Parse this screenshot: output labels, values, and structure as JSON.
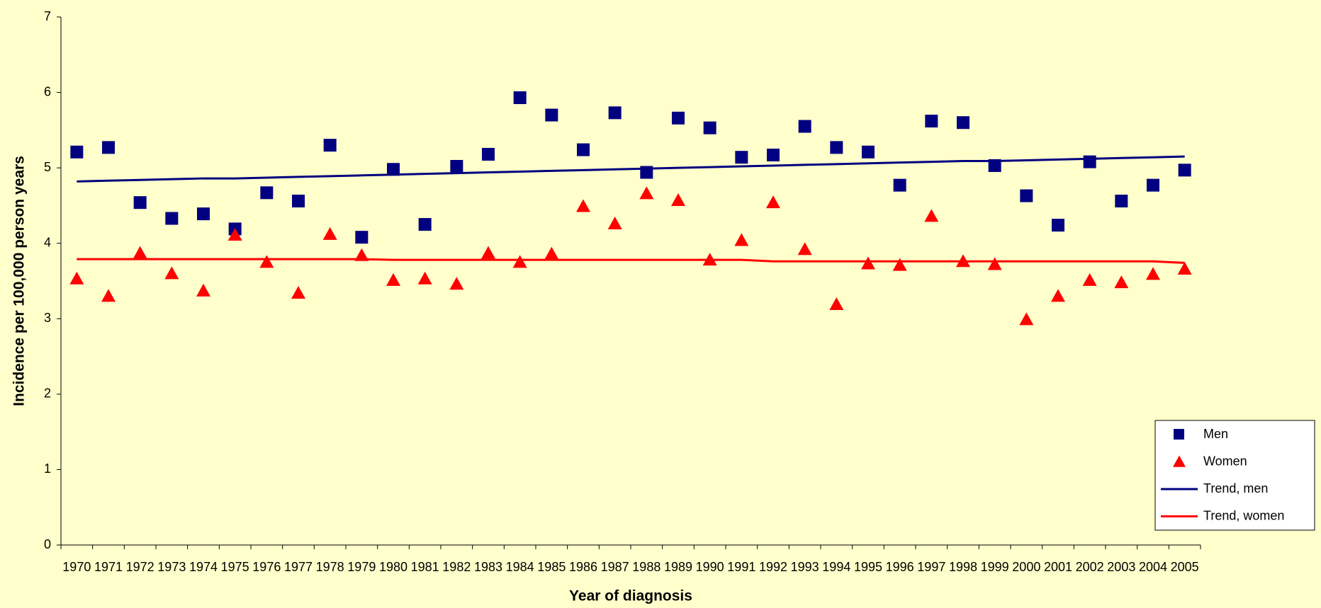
{
  "chart_data": {
    "type": "scatter",
    "x_label": "Year of diagnosis",
    "y_label": "Incidence per 100,000 person years",
    "categories": [
      "1970",
      "1971",
      "1972",
      "1973",
      "1974",
      "1975",
      "1976",
      "1977",
      "1978",
      "1979",
      "1980",
      "1981",
      "1982",
      "1983",
      "1984",
      "1985",
      "1986",
      "1987",
      "1988",
      "1989",
      "1990",
      "1991",
      "1992",
      "1993",
      "1994",
      "1995",
      "1996",
      "1997",
      "1998",
      "1999",
      "2000",
      "2001",
      "2002",
      "2003",
      "2004",
      "2005"
    ],
    "series": [
      {
        "name": "Men",
        "color": "#000080",
        "marker": "square",
        "values": [
          5.21,
          5.27,
          4.54,
          4.33,
          4.39,
          4.19,
          4.67,
          4.56,
          5.3,
          4.08,
          4.98,
          4.25,
          5.02,
          5.18,
          5.93,
          5.7,
          5.24,
          5.73,
          4.94,
          5.66,
          5.53,
          5.14,
          5.17,
          5.55,
          5.27,
          5.21,
          4.77,
          5.62,
          5.6,
          5.03,
          4.63,
          4.24,
          5.08,
          4.56,
          4.77,
          4.97
        ]
      },
      {
        "name": "Women",
        "color": "#ff0000",
        "marker": "triangle",
        "values": [
          3.53,
          3.3,
          3.87,
          3.6,
          3.37,
          4.11,
          3.75,
          3.34,
          4.12,
          3.84,
          3.51,
          3.53,
          3.46,
          3.87,
          3.75,
          3.86,
          4.49,
          4.26,
          4.66,
          4.57,
          3.78,
          4.04,
          4.54,
          3.92,
          3.19,
          3.73,
          3.71,
          4.36,
          3.76,
          3.72,
          2.99,
          3.3,
          3.51,
          3.48,
          3.59,
          3.66
        ]
      },
      {
        "name": "Trend, men",
        "color": "#000080",
        "marker": "line",
        "values": [
          4.82,
          4.83,
          4.84,
          4.85,
          4.86,
          4.86,
          4.87,
          4.88,
          4.89,
          4.9,
          4.91,
          4.92,
          4.93,
          4.94,
          4.95,
          4.96,
          4.97,
          4.98,
          4.99,
          5.0,
          5.01,
          5.02,
          5.03,
          5.04,
          5.05,
          5.06,
          5.07,
          5.08,
          5.09,
          5.09,
          5.1,
          5.11,
          5.12,
          5.13,
          5.14,
          5.15
        ]
      },
      {
        "name": "Trend, women",
        "color": "#ff0000",
        "marker": "line",
        "values": [
          3.79,
          3.79,
          3.79,
          3.79,
          3.79,
          3.79,
          3.79,
          3.79,
          3.79,
          3.79,
          3.78,
          3.78,
          3.78,
          3.78,
          3.78,
          3.78,
          3.78,
          3.78,
          3.78,
          3.78,
          3.78,
          3.78,
          3.76,
          3.76,
          3.76,
          3.76,
          3.76,
          3.76,
          3.76,
          3.76,
          3.76,
          3.76,
          3.76,
          3.76,
          3.76,
          3.74
        ]
      }
    ],
    "ylim": [
      0,
      7
    ],
    "yticks": [
      0,
      1,
      2,
      3,
      4,
      5,
      6,
      7
    ],
    "grid": false,
    "legend": "lower right",
    "background": "#ffffcc"
  }
}
